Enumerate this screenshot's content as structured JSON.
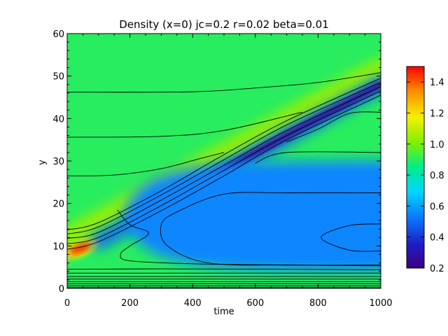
{
  "chart_data": {
    "type": "heatmap",
    "title": "Density (x=0) jc=0.2 r=0.02 beta=0.01",
    "xlabel": "time",
    "ylabel": "y",
    "xlim": [
      0,
      1000
    ],
    "ylim": [
      0,
      60
    ],
    "xticks": [
      0,
      200,
      400,
      600,
      800,
      1000
    ],
    "yticks": [
      0,
      10,
      20,
      30,
      40,
      50,
      60
    ],
    "colorbar": {
      "range": [
        0.2,
        1.5
      ],
      "ticks": [
        0.2,
        0.4,
        0.6,
        0.8,
        1.0,
        1.2,
        1.4
      ],
      "tick_labels": [
        "0.2",
        "0.4",
        "0.6",
        "0.8",
        "1.0",
        "1.2",
        "1.4"
      ],
      "colormap": "rainbow"
    },
    "background_value": 0.9,
    "features": [
      {
        "kind": "peak",
        "time": 40,
        "y": 9.5,
        "value": 1.45
      },
      {
        "kind": "front_ridge",
        "from": [
          0,
          12
        ],
        "to": [
          1000,
          52
        ],
        "value": 1.05
      },
      {
        "kind": "depletion_band",
        "from": [
          100,
          11
        ],
        "to": [
          1000,
          48
        ],
        "value": 0.25
      },
      {
        "kind": "depleted_region",
        "time_range": [
          180,
          1000
        ],
        "y_range": [
          4,
          30
        ],
        "value": 0.55
      }
    ],
    "contours": [
      {
        "points": [
          [
            0,
            46.2
          ],
          [
            400,
            46.3
          ],
          [
            600,
            47.2
          ],
          [
            800,
            48.5
          ],
          [
            1000,
            50.8
          ]
        ]
      },
      {
        "points": [
          [
            0,
            35.6
          ],
          [
            300,
            35.8
          ],
          [
            500,
            37.2
          ],
          [
            750,
            41.5
          ]
        ]
      },
      {
        "points": [
          [
            0,
            26.5
          ],
          [
            150,
            26.7
          ],
          [
            300,
            28.2
          ],
          [
            420,
            30.5
          ],
          [
            500,
            32.0
          ]
        ]
      },
      {
        "points": [
          [
            0,
            13.8
          ],
          [
            100,
            15.5
          ],
          [
            300,
            23.0
          ],
          [
            500,
            31.5
          ],
          [
            700,
            39.5
          ],
          [
            1000,
            49.5
          ]
        ]
      },
      {
        "points": [
          [
            0,
            12.8
          ],
          [
            100,
            14.5
          ],
          [
            300,
            22.0
          ],
          [
            500,
            30.3
          ],
          [
            700,
            38.5
          ],
          [
            1000,
            48.5
          ]
        ]
      },
      {
        "points": [
          [
            0,
            11.8
          ],
          [
            100,
            13.2
          ],
          [
            300,
            20.8
          ],
          [
            500,
            29.0
          ],
          [
            700,
            37.2
          ],
          [
            1000,
            47.5
          ]
        ]
      },
      {
        "points": [
          [
            0,
            10.5
          ],
          [
            100,
            12.0
          ],
          [
            300,
            19.5
          ],
          [
            500,
            27.8
          ],
          [
            700,
            36.0
          ],
          [
            1000,
            46.5
          ]
        ]
      },
      {
        "points": [
          [
            0,
            9.2
          ],
          [
            100,
            11.0
          ],
          [
            300,
            18.3
          ],
          [
            500,
            26.5
          ],
          [
            700,
            35.0
          ],
          [
            1000,
            45.5
          ]
        ]
      },
      {
        "points": [
          [
            1000,
            41.5
          ],
          [
            900,
            41.2
          ],
          [
            800,
            37.5
          ],
          [
            700,
            34.5
          ]
        ]
      },
      {
        "points": [
          [
            1000,
            32.0
          ],
          [
            700,
            32.0
          ],
          [
            600,
            29.5
          ]
        ]
      },
      {
        "points": [
          [
            1000,
            22.5
          ],
          [
            700,
            22.5
          ],
          [
            500,
            22.2
          ],
          [
            350,
            18.0
          ],
          [
            300,
            15.0
          ],
          [
            320,
            10.0
          ],
          [
            450,
            6.0
          ],
          [
            700,
            5.5
          ],
          [
            1000,
            5.5
          ]
        ]
      },
      {
        "points": [
          [
            160,
            18.5
          ],
          [
            200,
            15.0
          ],
          [
            260,
            13.0
          ],
          [
            200,
            10.0
          ],
          [
            170,
            8.0
          ],
          [
            200,
            6.5
          ],
          [
            400,
            5.8
          ],
          [
            700,
            5.5
          ],
          [
            1000,
            5.3
          ]
        ]
      },
      {
        "points": [
          [
            1000,
            15.2
          ],
          [
            900,
            14.8
          ],
          [
            810,
            12.0
          ],
          [
            900,
            9.0
          ],
          [
            1000,
            8.8
          ]
        ]
      },
      {
        "points": [
          [
            0,
            4.5
          ],
          [
            300,
            4.6
          ],
          [
            700,
            4.5
          ],
          [
            1000,
            4.4
          ]
        ]
      },
      {
        "points": [
          [
            0,
            3.6
          ],
          [
            1000,
            3.6
          ]
        ]
      },
      {
        "points": [
          [
            0,
            2.8
          ],
          [
            1000,
            2.8
          ]
        ]
      },
      {
        "points": [
          [
            0,
            2.2
          ],
          [
            1000,
            2.2
          ]
        ]
      },
      {
        "points": [
          [
            0,
            1.6
          ],
          [
            1000,
            1.6
          ]
        ]
      },
      {
        "points": [
          [
            0,
            1.1
          ],
          [
            1000,
            1.1
          ]
        ]
      },
      {
        "points": [
          [
            0,
            0.6
          ],
          [
            1000,
            0.6
          ]
        ]
      },
      {
        "points": [
          [
            0,
            0.2
          ],
          [
            1000,
            0.2
          ]
        ]
      }
    ]
  }
}
